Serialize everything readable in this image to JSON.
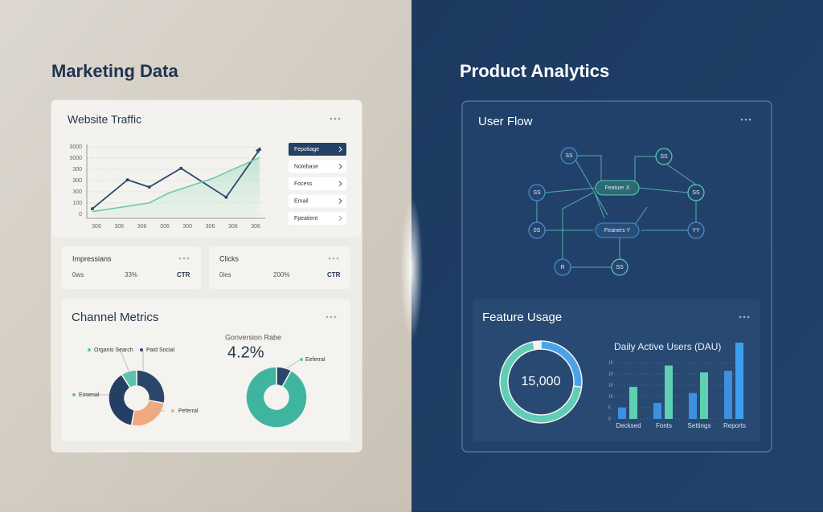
{
  "left": {
    "title": "Marketing Data",
    "traffic": {
      "title": "Website Traffic",
      "y_labels": [
        "3000",
        "3000",
        "300",
        "300",
        "300",
        "100",
        "0"
      ],
      "x_labels": [
        "306",
        "306",
        "306",
        "306",
        "300",
        "306",
        "306",
        "306"
      ],
      "xlim": [
        0,
        100
      ],
      "ylim": [
        0,
        100
      ],
      "series": [
        {
          "color": "#2c4a6e",
          "x": [
            0,
            21,
            34,
            53,
            80,
            100
          ],
          "values": [
            11,
            51,
            41,
            67,
            27,
            93
          ]
        },
        {
          "color": "#6cc9ad",
          "x": [
            0,
            34,
            46,
            72,
            100
          ],
          "values": [
            7,
            19,
            33,
            53,
            82
          ]
        }
      ],
      "list": [
        {
          "label": "Fepotiage",
          "selected": true
        },
        {
          "label": "Notebase",
          "selected": false
        },
        {
          "label": "Focess",
          "selected": false
        },
        {
          "label": "Email",
          "selected": false
        },
        {
          "label": "Fpeatient",
          "selected": false
        }
      ]
    },
    "stats": [
      {
        "title": "Impressians",
        "a": "0ws",
        "b": "33%",
        "c": "CTR"
      },
      {
        "title": "Clicks",
        "a": "0ies",
        "b": "200%",
        "c": "CTR"
      }
    ],
    "channel": {
      "title": "Channel Metrics",
      "segments": [
        {
          "name": "Paid Social",
          "color": "#2a466b",
          "value": 28
        },
        {
          "name": "Peferral",
          "color": "#f0a97e",
          "value": 25
        },
        {
          "name": "Eosenal",
          "color": "#243f63",
          "value": 38
        },
        {
          "name": "Organis Search",
          "color": "#5cc4ad",
          "value": 9
        }
      ],
      "conversion_label": "Gonversion Rabe",
      "conversion_value": "4.2%",
      "donut2": [
        {
          "name": "Eeferral",
          "color": "#2a466b",
          "value": 8
        },
        {
          "color": "#3fb5a0",
          "value": 92
        }
      ]
    }
  },
  "right": {
    "title": "Product Analytics",
    "flow": {
      "title": "User Flow",
      "nodes": [
        {
          "label": "SS"
        },
        {
          "label": "SS"
        },
        {
          "label": "Featuer X"
        },
        {
          "label": "SS"
        },
        {
          "label": "SS"
        },
        {
          "label": "Feaners Y"
        },
        {
          "label": "0S"
        },
        {
          "label": "YY"
        },
        {
          "label": "R"
        },
        {
          "label": "SS"
        }
      ]
    },
    "usage": {
      "title": "Feature Usage",
      "ring_label": "15,000",
      "ring": [
        {
          "color": "#4aa3e8",
          "value": 27
        },
        {
          "color": "#5fcdb8",
          "value": 70
        },
        {
          "color": "#f2f2f2",
          "value": 3
        }
      ],
      "dau_title": "Daily Active Users (DAU)",
      "y_labels": [
        "15",
        "10",
        "10",
        "10",
        "5",
        "0"
      ],
      "categories": [
        "Decksed",
        "Fonts",
        "Settings",
        "Reports"
      ],
      "ylim": [
        0,
        100
      ],
      "series": [
        {
          "colors": [
            "#3d8fe0",
            "#3d8fe0",
            "#3d8fe0",
            "#3d8fe0"
          ],
          "values": [
            15,
            21,
            34,
            63
          ]
        },
        {
          "colors": [
            "#5fd0b0",
            "#5fd0b0",
            "#5fd0b0",
            "#3d9ff0"
          ],
          "values": [
            42,
            70,
            61,
            100
          ]
        }
      ]
    }
  }
}
